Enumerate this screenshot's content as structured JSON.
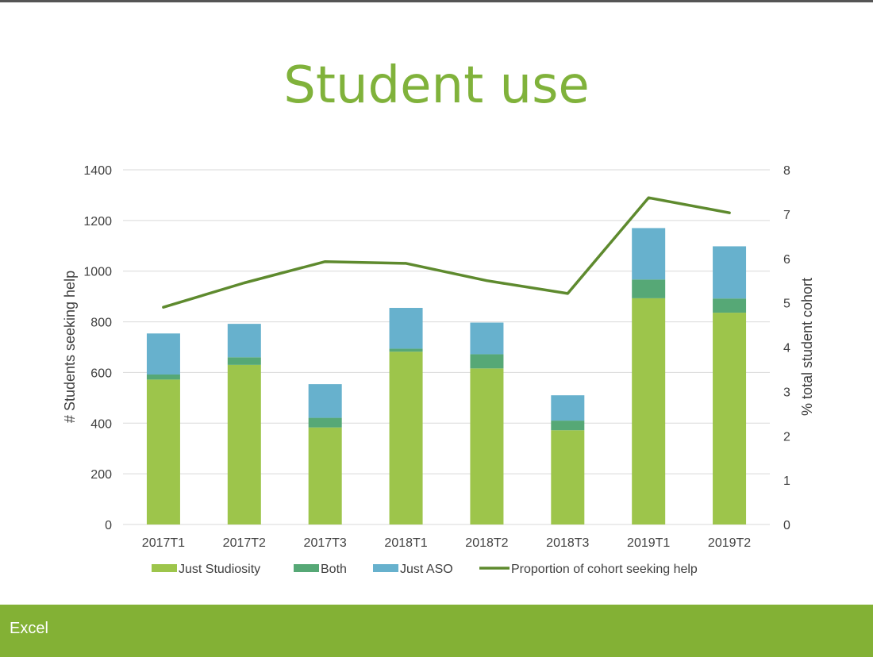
{
  "slide": {
    "title": "Student use",
    "footer_label": "Excel"
  },
  "colors": {
    "title": "#80b23b",
    "footer_bg": "#83b135",
    "grid": "#d9d9d9",
    "tick_text": "#404040",
    "top_rule": "#555555"
  },
  "chart_data": {
    "type": "bar",
    "stacked": true,
    "categories": [
      "2017T1",
      "2017T2",
      "2017T3",
      "2018T1",
      "2018T2",
      "2018T3",
      "2019T1",
      "2019T2"
    ],
    "series": [
      {
        "name": "Just Studiosity",
        "axis": "left",
        "color": "#9dc54b",
        "values": [
          572,
          630,
          383,
          682,
          616,
          372,
          893,
          836
        ]
      },
      {
        "name": "Both",
        "axis": "left",
        "color": "#56a876",
        "values": [
          20,
          30,
          38,
          12,
          56,
          38,
          74,
          56
        ]
      },
      {
        "name": "Just ASO",
        "axis": "left",
        "color": "#67b1cd",
        "values": [
          162,
          132,
          133,
          161,
          125,
          100,
          203,
          206
        ]
      },
      {
        "name": "Proportion of cohort seeking help",
        "axis": "right",
        "type": "line",
        "color": "#5e8a2e",
        "values": [
          4.9,
          5.45,
          5.93,
          5.89,
          5.5,
          5.21,
          7.37,
          7.03
        ]
      }
    ],
    "ylabel": "# Students seeking help",
    "ylabel_right": "% total student cohort",
    "ylim": [
      0,
      1400
    ],
    "ylim_right": [
      0,
      8
    ],
    "yticks": [
      0,
      200,
      400,
      600,
      800,
      1000,
      1200,
      1400
    ],
    "yticks_right": [
      0,
      1,
      2,
      3,
      4,
      5,
      6,
      7,
      8
    ],
    "grid": true,
    "legend_position": "bottom"
  }
}
